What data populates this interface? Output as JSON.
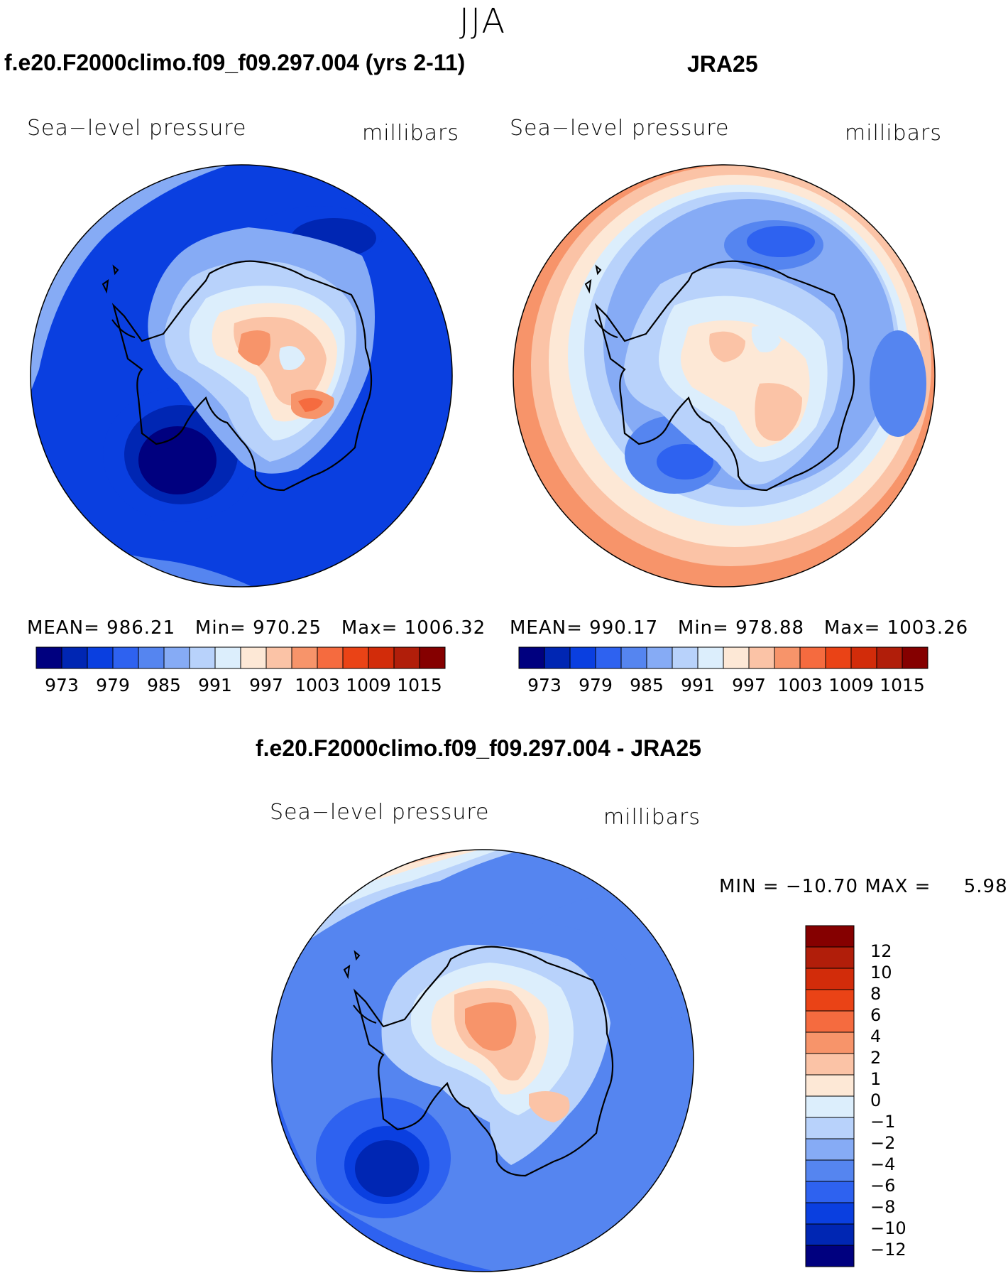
{
  "figure": {
    "season": "JJA",
    "panels": [
      {
        "id": "model",
        "title": "f.e20.F2000climo.f09_f09.297.004 (yrs 2-11)",
        "variable": "Sea−level pressure",
        "units": "millibars",
        "stats": "MEAN= 986.21   Min= 970.25   Max= 1006.32",
        "colorbar_ticks": [
          "973",
          "979",
          "985",
          "991",
          "997",
          "1003",
          "1009",
          "1015"
        ]
      },
      {
        "id": "obs",
        "title": "JRA25",
        "variable": "Sea−level pressure",
        "units": "millibars",
        "stats": "MEAN= 990.17   Min= 978.88   Max= 1003.26",
        "colorbar_ticks": [
          "973",
          "979",
          "985",
          "991",
          "997",
          "1003",
          "1009",
          "1015"
        ]
      },
      {
        "id": "diff",
        "title": "f.e20.F2000climo.f09_f09.297.004 - JRA25",
        "variable": "Sea−level pressure",
        "units": "millibars",
        "stats": "MIN = −10.70 MAX =     5.98",
        "colorbar_ticks": [
          "12",
          "10",
          "8",
          "6",
          "4",
          "2",
          "1",
          "0",
          "−1",
          "−2",
          "−4",
          "−6",
          "−8",
          "−10",
          "−12"
        ]
      }
    ],
    "colors": {
      "abs_scale": [
        "#00007f",
        "#0026b3",
        "#0a3fe0",
        "#2e62f0",
        "#5585f0",
        "#86abf5",
        "#b8d2fb",
        "#dceefc",
        "#fde8d6",
        "#fbc3a6",
        "#f7946a",
        "#f56b3f",
        "#ea4316",
        "#d22c0a",
        "#b11e0a",
        "#850000"
      ],
      "diff_scale": [
        "#850000",
        "#b11e0a",
        "#d22c0a",
        "#ea4316",
        "#f56b3f",
        "#f7946a",
        "#fbc3a6",
        "#fde8d6",
        "#dceefc",
        "#b8d2fb",
        "#86abf5",
        "#5585f0",
        "#2e62f0",
        "#0a3fe0",
        "#0026b3",
        "#00007f"
      ]
    }
  }
}
